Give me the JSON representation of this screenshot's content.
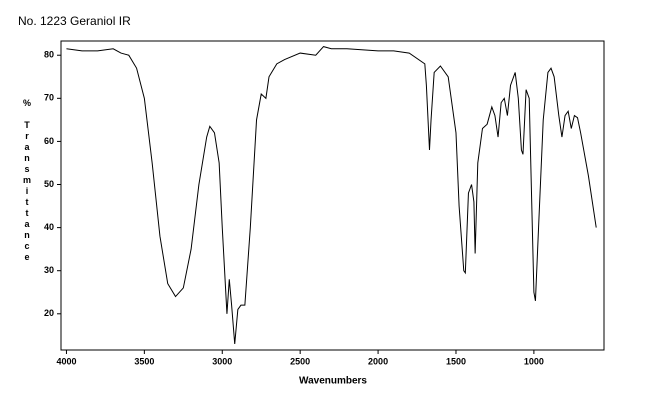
{
  "chart_data": {
    "type": "line",
    "title": "No. 1223 Geraniol IR",
    "x_label": "Wavenumbers",
    "y_label": "% Transmittance",
    "xlim": [
      4035,
      550
    ],
    "ylim": [
      11.6,
      83.3
    ],
    "xticks": [
      4000,
      3500,
      3000,
      2500,
      2000,
      1500,
      1000
    ],
    "yticks": [
      20,
      30,
      40,
      50,
      60,
      70,
      80
    ],
    "color": "#000000",
    "x": [
      4000,
      3900,
      3800,
      3700,
      3650,
      3600,
      3550,
      3500,
      3450,
      3400,
      3350,
      3300,
      3250,
      3200,
      3150,
      3100,
      3080,
      3050,
      3020,
      3000,
      2970,
      2955,
      2940,
      2920,
      2900,
      2880,
      2855,
      2820,
      2780,
      2750,
      2720,
      2700,
      2650,
      2600,
      2500,
      2400,
      2350,
      2300,
      2200,
      2000,
      1900,
      1800,
      1700,
      1690,
      1670,
      1660,
      1640,
      1600,
      1550,
      1500,
      1480,
      1450,
      1440,
      1420,
      1400,
      1385,
      1377,
      1360,
      1330,
      1300,
      1270,
      1250,
      1230,
      1210,
      1190,
      1170,
      1150,
      1120,
      1100,
      1080,
      1070,
      1050,
      1030,
      1000,
      990,
      970,
      940,
      910,
      890,
      870,
      840,
      820,
      800,
      780,
      760,
      740,
      720,
      700,
      650,
      600
    ],
    "values": [
      81.5,
      81,
      81,
      81.5,
      80.5,
      80,
      77,
      70,
      55,
      38,
      27,
      24,
      26,
      35,
      50,
      61,
      63.5,
      62,
      55,
      40,
      20,
      28,
      22,
      13,
      21,
      22,
      22,
      40,
      65,
      71,
      70,
      75,
      78,
      79,
      80.5,
      80,
      82,
      81.5,
      81.5,
      81,
      81,
      80.5,
      78,
      73,
      58,
      65,
      76,
      77.5,
      75,
      62,
      45,
      30,
      29.5,
      48,
      50,
      46,
      34,
      55,
      63,
      64,
      68,
      66,
      61,
      69,
      70,
      66,
      73,
      76,
      70,
      58,
      57,
      72,
      70,
      25,
      23,
      40,
      65,
      76,
      77,
      75,
      66,
      61,
      66,
      67,
      63,
      66,
      65.5,
      62,
      52,
      40
    ]
  }
}
